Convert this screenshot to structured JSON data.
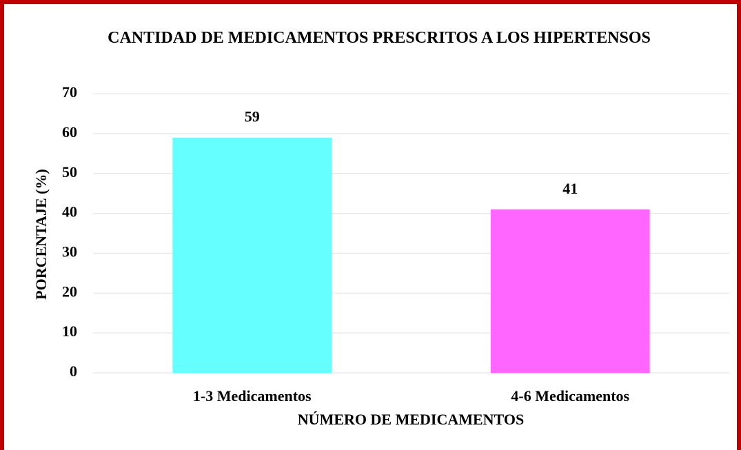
{
  "chart_data": {
    "type": "bar",
    "title": "CANTIDAD DE MEDICAMENTOS PRESCRITOS A LOS HIPERTENSOS",
    "x_label": "NÚMERO DE MEDICAMENTOS",
    "y_label": "PORCENTAJE (%)",
    "categories": [
      "1-3 Medicamentos",
      "4-6 Medicamentos"
    ],
    "values": [
      59,
      41
    ],
    "colors": [
      "#66ffff",
      "#ff66ff"
    ],
    "ylim": [
      0,
      70
    ],
    "yticks": [
      0,
      10,
      20,
      30,
      40,
      50,
      60,
      70
    ],
    "grid": true
  }
}
